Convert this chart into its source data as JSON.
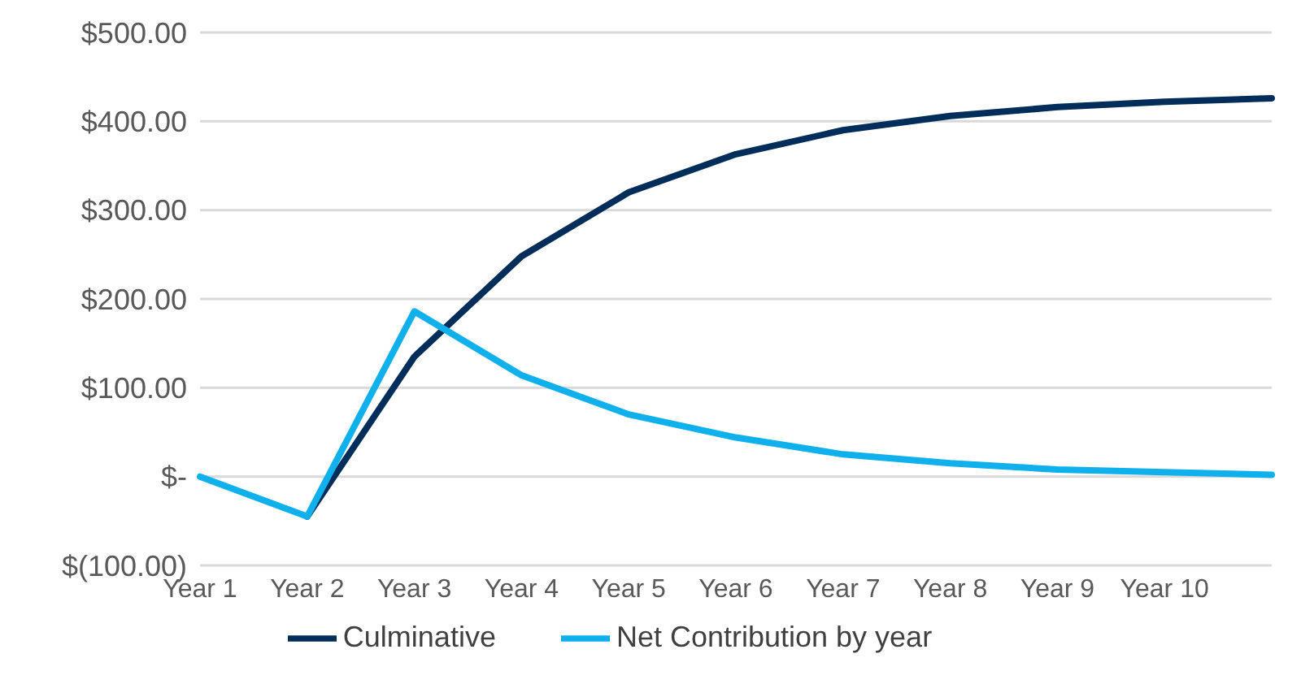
{
  "chart_data": {
    "type": "line",
    "categories": [
      "Year 1",
      "Year 2",
      "Year 3",
      "Year 4",
      "Year 5",
      "Year 6",
      "Year 7",
      "Year 8",
      "Year 9",
      "Year 10",
      null
    ],
    "series": [
      {
        "name": "Culminative",
        "color": "#002d5a",
        "values": [
          null,
          -45,
          135,
          248,
          320,
          363,
          390,
          406,
          416,
          422,
          426
        ]
      },
      {
        "name": "Net Contribution by year",
        "color": "#0fb0ec",
        "values": [
          0,
          -45,
          186,
          114,
          70,
          44,
          25,
          15,
          8,
          5,
          2
        ]
      }
    ],
    "ylim": [
      -100,
      500
    ],
    "yticks": [
      {
        "value": -100,
        "label": "$(100.00)"
      },
      {
        "value": 0,
        "label": "$-"
      },
      {
        "value": 100,
        "label": "$100.00"
      },
      {
        "value": 200,
        "label": "$200.00"
      },
      {
        "value": 300,
        "label": "$300.00"
      },
      {
        "value": 400,
        "label": "$400.00"
      },
      {
        "value": 500,
        "label": "$500.00"
      }
    ],
    "grid": "y",
    "legend": "bottom",
    "marker": "none",
    "line_style": "solid"
  }
}
